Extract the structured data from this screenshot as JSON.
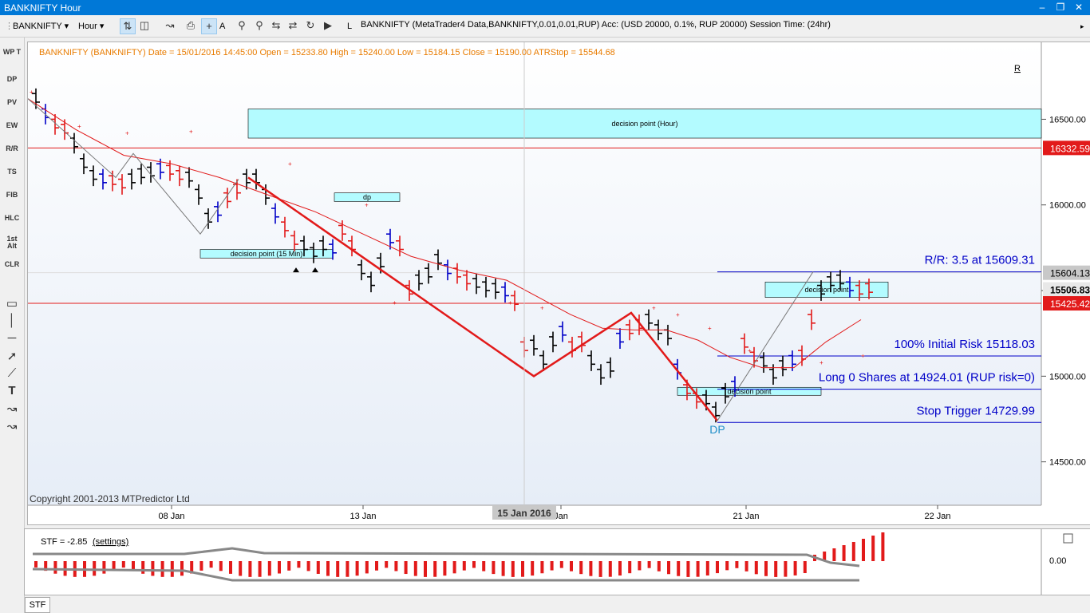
{
  "window": {
    "title": "BANKNIFTY Hour"
  },
  "toolbar": {
    "symbol": "BANKNIFTY",
    "timeframe": "Hour",
    "l_label": "L",
    "a_label": "A",
    "info": "BANKNIFTY (MetaTrader4 Data,BANKNIFTY,0.01,0.01,RUP) Acc: (USD 20000, 0.1%, RUP 20000) Session Time: (24hr)"
  },
  "left_tools": [
    "WP T",
    "DP",
    "PV",
    "EW",
    "R/R",
    "TS",
    "FIB",
    "HLC",
    "1st Alt",
    "CLR"
  ],
  "chart": {
    "header": "BANKNIFTY (BANKNIFTY) Date = 15/01/2016 14:45:00 Open = 15233.80 High = 15240.00 Low = 15184.15 Close = 15190.00 ATRStop = 15544.68",
    "r_marker": "R",
    "copyright": "Copyright 2001-2013 MTPredictor Ltd",
    "x_ticks": [
      "08 Jan",
      "13 Jan",
      "Jan",
      "21 Jan",
      "22 Jan"
    ],
    "x_cursor": "15 Jan 2016",
    "y_ticks": [
      "16500.00",
      "16000.00",
      "15500.00",
      "15000.00",
      "14500.00"
    ],
    "y_range": [
      14340,
      16940
    ],
    "price_boxes": [
      {
        "value": "16332.59",
        "color": "#e21a1a"
      },
      {
        "value": "15604.13",
        "color": "#c8c8c8"
      },
      {
        "value": "15506.83",
        "color": "#e8e8e8"
      },
      {
        "value": "15425.42",
        "color": "#e21a1a"
      }
    ],
    "zones": [
      {
        "label": "decision point (Hour)",
        "top": 16560,
        "bottom": 16390
      },
      {
        "label": "dp",
        "top": 16070,
        "bottom": 16020
      },
      {
        "label": "decision point (15 Min)",
        "top": 15740,
        "bottom": 15690
      },
      {
        "label": "decision point",
        "top": 15550,
        "bottom": 15460
      },
      {
        "label": "decision point",
        "top": 14935,
        "bottom": 14890
      }
    ],
    "trade_lines": [
      {
        "label": "R/R: 3.5 at 15609.31",
        "price": 15609.31
      },
      {
        "label": "100% Initial Risk 15118.03",
        "price": 15118.03
      },
      {
        "label": "Long 0 Shares at 14924.01 (RUP risk=0)",
        "price": 14924.01
      },
      {
        "label": "Stop Trigger 14729.99",
        "price": 14729.99
      }
    ],
    "dp_label": "DP"
  },
  "stf": {
    "label": "STF = -2.85",
    "settings": "(settings)",
    "y_tick": "0.00",
    "tab": "STF"
  },
  "colors": {
    "accent": "#0078d7",
    "zone": "#b3fbff",
    "red": "#e21a1a",
    "blue": "#0000c8"
  }
}
